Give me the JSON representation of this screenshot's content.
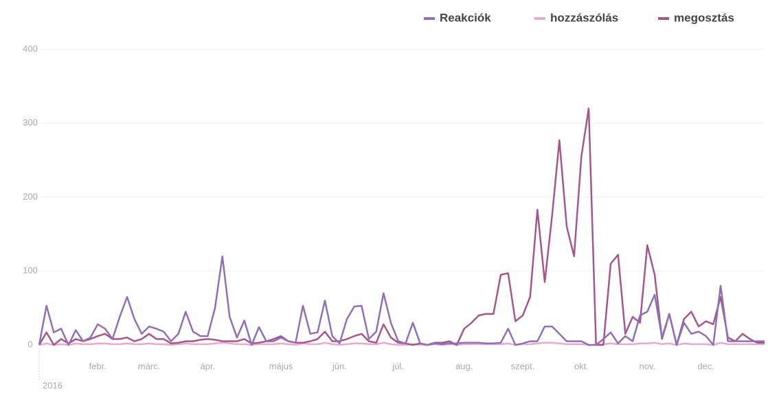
{
  "chart_data": {
    "type": "line",
    "categories": [
      "2016",
      null,
      null,
      null,
      null,
      null,
      null,
      null,
      "febr.",
      null,
      null,
      null,
      null,
      null,
      null,
      "márc.",
      null,
      null,
      null,
      null,
      null,
      null,
      null,
      "ápr.",
      null,
      null,
      null,
      null,
      null,
      null,
      null,
      null,
      null,
      "május",
      null,
      null,
      null,
      null,
      null,
      null,
      null,
      "jún.",
      null,
      null,
      null,
      null,
      null,
      null,
      null,
      "júl.",
      null,
      null,
      null,
      null,
      null,
      null,
      null,
      null,
      "aug.",
      null,
      null,
      null,
      null,
      null,
      null,
      null,
      "szept.",
      null,
      null,
      null,
      null,
      null,
      null,
      null,
      "okt.",
      null,
      null,
      null,
      null,
      null,
      null,
      null,
      null,
      "nov.",
      null,
      null,
      null,
      null,
      null,
      null,
      null,
      "dec.",
      null,
      null,
      null,
      null,
      null,
      null,
      null,
      null
    ],
    "series": [
      {
        "name": "Reakciók",
        "color": "#8f6fb8",
        "values": [
          0,
          53,
          17,
          22,
          0,
          20,
          5,
          10,
          28,
          22,
          8,
          38,
          65,
          35,
          15,
          25,
          22,
          18,
          5,
          15,
          45,
          18,
          12,
          12,
          50,
          120,
          38,
          10,
          33,
          0,
          24,
          5,
          5,
          10,
          5,
          3,
          53,
          15,
          17,
          60,
          12,
          2,
          35,
          52,
          53,
          8,
          18,
          70,
          30,
          5,
          2,
          30,
          2,
          0,
          2,
          1,
          2,
          2,
          3,
          3,
          3,
          2,
          2,
          3,
          22,
          0,
          2,
          5,
          5,
          25,
          25,
          15,
          5,
          5,
          5,
          0,
          0,
          8,
          17,
          2,
          12,
          5,
          40,
          45,
          68,
          10,
          42,
          0,
          30,
          15,
          18,
          12,
          0,
          80,
          5,
          5,
          5,
          5,
          5,
          5
        ]
      },
      {
        "name": "hozzászólás",
        "color": "#eaaacb",
        "values": [
          0,
          2,
          0,
          1,
          0,
          2,
          1,
          1,
          2,
          2,
          1,
          1,
          2,
          1,
          1,
          2,
          1,
          1,
          0,
          1,
          2,
          1,
          1,
          1,
          2,
          3,
          2,
          1,
          1,
          0,
          1,
          1,
          1,
          2,
          1,
          0,
          2,
          1,
          1,
          3,
          1,
          0,
          1,
          2,
          2,
          1,
          1,
          3,
          1,
          0,
          0,
          1,
          0,
          0,
          1,
          0,
          1,
          0,
          1,
          1,
          1,
          1,
          1,
          1,
          2,
          0,
          1,
          1,
          2,
          3,
          3,
          2,
          1,
          1,
          1,
          0,
          0,
          1,
          2,
          1,
          1,
          1,
          2,
          2,
          3,
          1,
          2,
          0,
          2,
          1,
          1,
          1,
          0,
          3,
          1,
          1,
          1,
          1,
          1,
          1
        ]
      },
      {
        "name": "megosztás",
        "color": "#a5568a",
        "values": [
          0,
          17,
          0,
          8,
          2,
          8,
          5,
          8,
          12,
          15,
          8,
          8,
          10,
          5,
          8,
          15,
          8,
          8,
          2,
          3,
          5,
          5,
          7,
          8,
          7,
          5,
          5,
          5,
          8,
          2,
          3,
          5,
          8,
          12,
          5,
          3,
          3,
          5,
          8,
          18,
          5,
          5,
          8,
          12,
          15,
          5,
          3,
          28,
          10,
          3,
          2,
          0,
          2,
          0,
          3,
          3,
          5,
          0,
          22,
          30,
          40,
          42,
          42,
          95,
          97,
          32,
          40,
          65,
          183,
          85,
          175,
          277,
          160,
          120,
          255,
          320,
          0,
          0,
          110,
          122,
          15,
          38,
          30,
          135,
          95,
          8,
          42,
          0,
          35,
          45,
          25,
          32,
          28,
          65,
          10,
          5,
          15,
          8,
          3,
          3
        ]
      }
    ],
    "ylim": [
      0,
      400
    ],
    "yticks": [
      0,
      100,
      200,
      300,
      400
    ],
    "grid": true,
    "legend": "top-right"
  }
}
